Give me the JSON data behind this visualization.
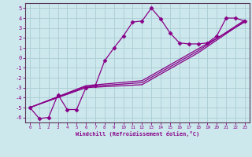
{
  "xlabel": "Windchill (Refroidissement éolien,°C)",
  "bg_color": "#cce8ec",
  "grid_color": "#aaccd4",
  "line_color": "#880088",
  "spine_color": "#553355",
  "xlim": [
    -0.5,
    23.5
  ],
  "ylim": [
    -6.5,
    5.5
  ],
  "xticks": [
    0,
    1,
    2,
    3,
    4,
    5,
    6,
    7,
    8,
    9,
    10,
    11,
    12,
    13,
    14,
    15,
    16,
    17,
    18,
    19,
    20,
    21,
    22,
    23
  ],
  "yticks": [
    -6,
    -5,
    -4,
    -3,
    -2,
    -1,
    0,
    1,
    2,
    3,
    4,
    5
  ],
  "series_main": {
    "x": [
      0,
      1,
      2,
      3,
      4,
      5,
      6,
      7,
      8,
      9,
      10,
      11,
      12,
      13,
      14,
      15,
      16,
      17,
      18,
      19,
      20,
      21,
      22,
      23
    ],
    "y": [
      -5.0,
      -6.1,
      -6.0,
      -3.7,
      -5.2,
      -5.2,
      -3.0,
      -2.8,
      -0.3,
      1.0,
      2.2,
      3.6,
      3.7,
      5.0,
      3.9,
      2.5,
      1.5,
      1.4,
      1.4,
      1.5,
      2.2,
      4.0,
      4.0,
      3.7
    ]
  },
  "series_lines": [
    {
      "x": [
        0,
        6,
        12,
        18,
        23
      ],
      "y": [
        -5.0,
        -3.0,
        -2.7,
        0.5,
        3.7
      ]
    },
    {
      "x": [
        0,
        6,
        12,
        18,
        23
      ],
      "y": [
        -5.0,
        -2.9,
        -2.5,
        0.7,
        3.8
      ]
    },
    {
      "x": [
        0,
        6,
        12,
        18,
        23
      ],
      "y": [
        -5.0,
        -2.8,
        -2.3,
        0.9,
        3.6
      ]
    }
  ],
  "marker": "D",
  "markersize": 2.5,
  "linewidth": 0.9
}
